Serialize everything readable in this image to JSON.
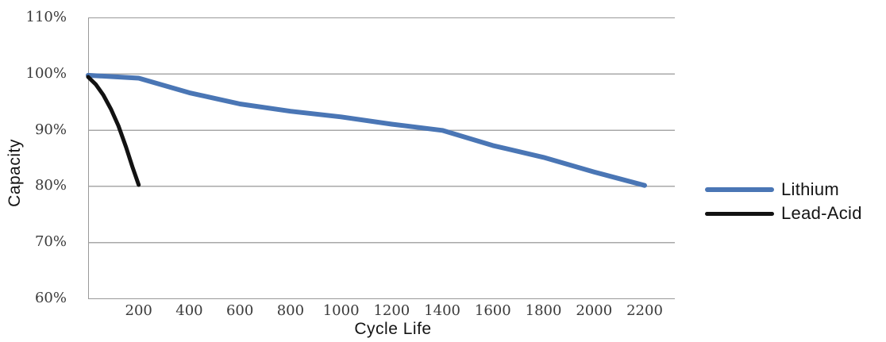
{
  "chart_data": {
    "type": "line",
    "title": "",
    "xlabel": "Cycle Life",
    "ylabel": "Capacity",
    "xlim": [
      0,
      2320
    ],
    "ylim": [
      60,
      110
    ],
    "grid": "horizontal",
    "legend_position": "right-middle",
    "x_ticks": [
      {
        "value": 200,
        "label": "200"
      },
      {
        "value": 400,
        "label": "400"
      },
      {
        "value": 600,
        "label": "600"
      },
      {
        "value": 800,
        "label": "800"
      },
      {
        "value": 1000,
        "label": "1000"
      },
      {
        "value": 1200,
        "label": "1200"
      },
      {
        "value": 1400,
        "label": "1400"
      },
      {
        "value": 1600,
        "label": "1600"
      },
      {
        "value": 1800,
        "label": "1800"
      },
      {
        "value": 2000,
        "label": "2000"
      },
      {
        "value": 2200,
        "label": "2200"
      }
    ],
    "y_ticks": [
      {
        "value": 110,
        "label": "110%"
      },
      {
        "value": 100,
        "label": "100%"
      },
      {
        "value": 90,
        "label": "90%"
      },
      {
        "value": 80,
        "label": "80%"
      },
      {
        "value": 70,
        "label": "70%"
      },
      {
        "value": 60,
        "label": "60%"
      }
    ],
    "series": [
      {
        "name": "Lithium",
        "color": "#4A76B5",
        "x": [
          0,
          200,
          400,
          600,
          800,
          1000,
          1200,
          1400,
          1600,
          1800,
          2000,
          2200
        ],
        "y": [
          99.7,
          99.2,
          96.6,
          94.6,
          93.3,
          92.3,
          91.0,
          89.9,
          87.2,
          85.1,
          82.5,
          80.1
        ]
      },
      {
        "name": "Lead-Acid",
        "color": "#121212",
        "x": [
          0,
          30,
          60,
          90,
          120,
          150,
          175,
          200
        ],
        "y": [
          99.4,
          98.1,
          96.2,
          93.7,
          90.7,
          86.9,
          83.4,
          80.2
        ]
      }
    ]
  },
  "style": {
    "grid_color": "#A8A8A8",
    "axis_color": "#9A9A9A",
    "tick_label_color": "#3B3B3B",
    "text_color": "#141414",
    "background": "#FFFFFF"
  }
}
